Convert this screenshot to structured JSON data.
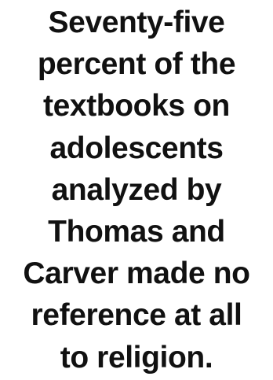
{
  "pullquote": {
    "lines": [
      "Seventy-five",
      "percent of the",
      "textbooks on",
      "adolescents",
      "analyzed by",
      "Thomas and",
      "Carver made no",
      "reference at all",
      "to religion."
    ]
  }
}
